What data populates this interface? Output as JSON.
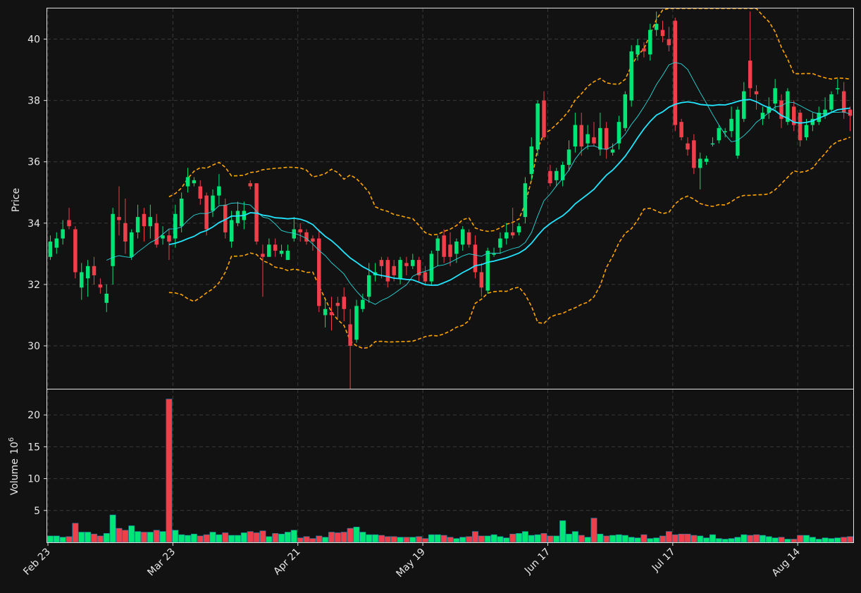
{
  "chart_data": {
    "type": "candlestick",
    "colors": {
      "background": "#121212",
      "up": "#00e676",
      "down": "#ef3f4a",
      "sma_fast": "#26d9d9",
      "sma_slow": "#22e5ff",
      "bollinger": "#ffa500",
      "grid": "#3a3a3a",
      "frame": "#e0e0e0"
    },
    "price_panel": {
      "ylabel": "Price",
      "ylim": [
        28.6,
        41.0
      ],
      "yticks": [
        30,
        32,
        34,
        36,
        38,
        40
      ],
      "grid": true
    },
    "volume_panel": {
      "ylabel": "Volume",
      "ylabel_exponent": "10",
      "ylabel_power": "6",
      "ylim": [
        0,
        24
      ],
      "yticks": [
        5,
        10,
        15,
        20
      ],
      "grid": true
    },
    "x_ticks": [
      {
        "label": "Feb 23",
        "index": 0
      },
      {
        "label": "Mar 23",
        "index": 20
      },
      {
        "label": "Apr 21",
        "index": 40
      },
      {
        "label": "May 19",
        "index": 60
      },
      {
        "label": "Jun 17",
        "index": 80
      },
      {
        "label": "Jul 17",
        "index": 100
      },
      {
        "label": "Aug 14",
        "index": 120
      }
    ],
    "candles": [
      [
        32.9,
        33.4,
        33.6,
        32.8,
        1.0
      ],
      [
        33.2,
        33.5,
        33.7,
        33.0,
        1.0
      ],
      [
        33.5,
        33.8,
        34.1,
        33.3,
        0.8
      ],
      [
        34.1,
        33.9,
        34.5,
        33.8,
        0.9
      ],
      [
        33.8,
        32.4,
        33.9,
        32.2,
        3.0
      ],
      [
        31.9,
        32.4,
        32.7,
        31.5,
        1.6
      ],
      [
        32.2,
        32.6,
        32.8,
        31.6,
        1.6
      ],
      [
        32.6,
        32.3,
        32.9,
        32.0,
        1.3
      ],
      [
        32.0,
        31.9,
        32.2,
        31.7,
        1.0
      ],
      [
        31.4,
        31.7,
        32.0,
        31.1,
        1.4
      ],
      [
        32.6,
        34.3,
        34.5,
        32.0,
        4.3
      ],
      [
        34.2,
        34.1,
        35.2,
        33.6,
        2.2
      ],
      [
        34.0,
        33.4,
        34.8,
        33.0,
        1.9
      ],
      [
        32.9,
        33.7,
        33.8,
        32.8,
        2.6
      ],
      [
        33.7,
        34.2,
        34.6,
        33.5,
        1.7
      ],
      [
        34.3,
        33.9,
        34.5,
        33.4,
        1.6
      ],
      [
        33.9,
        34.2,
        34.6,
        33.5,
        1.6
      ],
      [
        34.0,
        33.3,
        34.3,
        33.2,
        1.9
      ],
      [
        33.5,
        33.6,
        33.9,
        33.3,
        1.7
      ],
      [
        33.6,
        33.4,
        33.8,
        32.8,
        22.5
      ],
      [
        33.5,
        34.3,
        34.6,
        33.2,
        1.9
      ],
      [
        33.9,
        34.8,
        35.0,
        33.7,
        1.2
      ],
      [
        35.2,
        35.5,
        35.8,
        35.0,
        1.1
      ],
      [
        35.3,
        35.4,
        35.5,
        35.2,
        1.3
      ],
      [
        35.2,
        34.8,
        35.4,
        34.6,
        1.0
      ],
      [
        34.9,
        33.8,
        35.0,
        33.6,
        1.2
      ],
      [
        34.4,
        34.9,
        35.1,
        34.2,
        1.6
      ],
      [
        34.9,
        35.2,
        35.6,
        34.6,
        1.2
      ],
      [
        34.6,
        33.7,
        34.8,
        33.5,
        1.5
      ],
      [
        33.4,
        34.1,
        34.4,
        33.2,
        1.1
      ],
      [
        34.0,
        34.4,
        34.7,
        33.9,
        1.1
      ],
      [
        34.1,
        34.4,
        34.7,
        33.8,
        1.5
      ],
      [
        35.3,
        35.2,
        35.4,
        35.1,
        1.7
      ],
      [
        35.3,
        33.4,
        35.3,
        33.3,
        1.5
      ],
      [
        33.0,
        32.9,
        33.3,
        31.6,
        1.8
      ],
      [
        32.9,
        33.3,
        33.5,
        32.9,
        0.9
      ],
      [
        33.3,
        33.1,
        33.5,
        32.9,
        1.4
      ],
      [
        33.0,
        33.1,
        33.3,
        32.9,
        1.3
      ],
      [
        32.8,
        33.1,
        33.3,
        32.8,
        1.6
      ],
      [
        33.5,
        33.8,
        34.2,
        33.4,
        1.9
      ],
      [
        33.8,
        33.7,
        34.0,
        33.4,
        0.7
      ],
      [
        33.7,
        33.4,
        33.8,
        33.3,
        0.9
      ],
      [
        33.5,
        33.4,
        33.6,
        33.1,
        0.6
      ],
      [
        33.5,
        31.3,
        33.8,
        31.1,
        1.0
      ],
      [
        31.0,
        31.2,
        31.5,
        30.6,
        0.8
      ],
      [
        31.1,
        31.0,
        31.6,
        30.5,
        1.6
      ],
      [
        31.4,
        31.3,
        31.6,
        30.9,
        1.5
      ],
      [
        31.6,
        31.2,
        31.9,
        30.8,
        1.6
      ],
      [
        30.7,
        30.0,
        31.2,
        28.6,
        2.2
      ],
      [
        30.2,
        31.3,
        31.5,
        30.1,
        2.4
      ],
      [
        31.2,
        31.5,
        31.7,
        31.1,
        1.6
      ],
      [
        31.6,
        32.3,
        32.7,
        31.4,
        1.2
      ],
      [
        32.3,
        32.4,
        32.7,
        32.1,
        1.2
      ],
      [
        32.8,
        32.6,
        32.9,
        32.2,
        1.1
      ],
      [
        32.8,
        32.1,
        32.9,
        31.9,
        0.9
      ],
      [
        32.6,
        32.3,
        32.8,
        32.1,
        0.9
      ],
      [
        32.2,
        32.8,
        32.9,
        32.0,
        0.8
      ],
      [
        32.7,
        32.6,
        32.9,
        32.3,
        0.8
      ],
      [
        32.6,
        32.8,
        33.0,
        32.5,
        0.8
      ],
      [
        32.8,
        32.3,
        32.9,
        32.1,
        0.9
      ],
      [
        32.4,
        32.1,
        32.6,
        32.0,
        0.6
      ],
      [
        32.1,
        33.0,
        33.1,
        32.0,
        1.2
      ],
      [
        33.1,
        33.5,
        33.6,
        32.6,
        1.2
      ],
      [
        33.6,
        32.9,
        33.8,
        32.7,
        1.1
      ],
      [
        33.3,
        32.9,
        33.7,
        32.6,
        0.8
      ],
      [
        33.0,
        33.4,
        33.5,
        32.7,
        0.6
      ],
      [
        33.3,
        33.8,
        33.9,
        33.1,
        0.8
      ],
      [
        33.7,
        33.3,
        33.8,
        33.2,
        0.9
      ],
      [
        33.3,
        32.4,
        33.6,
        32.2,
        1.7
      ],
      [
        32.4,
        31.9,
        32.7,
        31.6,
        1.0
      ],
      [
        31.8,
        33.1,
        33.2,
        31.7,
        1.0
      ],
      [
        33.0,
        33.0,
        33.2,
        32.9,
        1.2
      ],
      [
        33.2,
        33.5,
        33.7,
        33.0,
        0.9
      ],
      [
        33.5,
        33.7,
        34.0,
        33.3,
        0.7
      ],
      [
        33.7,
        33.6,
        34.5,
        33.5,
        1.3
      ],
      [
        33.7,
        33.9,
        34.0,
        33.6,
        1.4
      ],
      [
        34.2,
        35.3,
        35.5,
        34.0,
        1.7
      ],
      [
        35.6,
        36.5,
        36.8,
        35.4,
        1.1
      ],
      [
        36.4,
        37.9,
        38.0,
        36.2,
        1.2
      ],
      [
        38.0,
        36.8,
        38.3,
        36.7,
        1.4
      ],
      [
        35.7,
        35.3,
        35.9,
        35.2,
        1.0
      ],
      [
        35.4,
        35.7,
        35.8,
        35.2,
        1.0
      ],
      [
        35.4,
        35.9,
        36.0,
        35.2,
        3.4
      ],
      [
        35.9,
        36.4,
        36.7,
        35.7,
        1.3
      ],
      [
        36.5,
        37.2,
        37.6,
        36.3,
        1.7
      ],
      [
        37.2,
        36.5,
        37.6,
        36.2,
        1.1
      ],
      [
        36.6,
        36.9,
        37.2,
        36.4,
        0.8
      ],
      [
        36.8,
        36.6,
        37.3,
        36.5,
        3.8
      ],
      [
        36.4,
        37.1,
        37.6,
        36.2,
        1.3
      ],
      [
        37.1,
        36.4,
        37.3,
        36.1,
        1.0
      ],
      [
        36.3,
        36.4,
        36.6,
        36.2,
        1.1
      ],
      [
        36.6,
        37.3,
        37.5,
        36.4,
        1.2
      ],
      [
        37.1,
        38.2,
        38.3,
        37.0,
        1.1
      ],
      [
        38.0,
        39.6,
        39.8,
        37.8,
        0.8
      ],
      [
        39.5,
        39.8,
        40.0,
        39.3,
        0.7
      ],
      [
        39.7,
        39.6,
        39.9,
        39.4,
        1.2
      ],
      [
        39.5,
        40.3,
        40.5,
        39.3,
        0.6
      ],
      [
        40.3,
        40.5,
        40.9,
        40.1,
        0.7
      ],
      [
        40.3,
        40.1,
        40.6,
        39.9,
        1.0
      ],
      [
        40.0,
        39.8,
        40.4,
        39.6,
        1.7
      ],
      [
        40.6,
        37.2,
        40.7,
        37.0,
        1.2
      ],
      [
        37.3,
        36.8,
        37.4,
        36.7,
        1.3
      ],
      [
        36.6,
        36.4,
        36.8,
        36.2,
        1.3
      ],
      [
        36.7,
        35.8,
        36.9,
        35.6,
        1.1
      ],
      [
        35.8,
        36.1,
        36.3,
        35.1,
        1.0
      ],
      [
        36.0,
        36.1,
        36.2,
        35.9,
        0.7
      ],
      [
        36.6,
        36.6,
        36.8,
        36.5,
        1.2
      ],
      [
        36.7,
        37.1,
        37.2,
        36.6,
        0.6
      ],
      [
        37.0,
        37.0,
        37.1,
        36.8,
        0.5
      ],
      [
        37.0,
        37.4,
        37.8,
        36.8,
        0.6
      ],
      [
        36.2,
        37.7,
        37.8,
        36.1,
        0.8
      ],
      [
        37.4,
        38.3,
        38.6,
        37.3,
        1.2
      ],
      [
        39.3,
        38.4,
        40.9,
        38.1,
        1.1
      ],
      [
        38.3,
        38.2,
        38.5,
        37.7,
        1.2
      ],
      [
        37.4,
        37.6,
        37.8,
        37.2,
        1.1
      ],
      [
        37.6,
        37.8,
        38.1,
        37.4,
        0.9
      ],
      [
        37.9,
        38.4,
        38.7,
        37.7,
        0.7
      ],
      [
        38.0,
        37.4,
        38.2,
        37.1,
        0.8
      ],
      [
        37.3,
        38.3,
        38.4,
        37.2,
        0.5
      ],
      [
        37.8,
        37.2,
        38.0,
        37.0,
        0.5
      ],
      [
        37.6,
        36.7,
        37.7,
        36.5,
        1.1
      ],
      [
        36.8,
        37.2,
        37.4,
        36.7,
        1.1
      ],
      [
        37.2,
        37.4,
        37.6,
        37.0,
        0.8
      ],
      [
        37.3,
        37.6,
        37.8,
        37.2,
        0.5
      ],
      [
        37.5,
        37.7,
        38.1,
        37.4,
        0.7
      ],
      [
        37.7,
        38.2,
        38.3,
        37.6,
        0.6
      ],
      [
        38.4,
        38.4,
        38.7,
        38.2,
        0.7
      ],
      [
        38.3,
        37.6,
        38.6,
        37.4,
        0.8
      ],
      [
        37.7,
        37.5,
        37.8,
        37.0,
        0.9
      ]
    ]
  }
}
